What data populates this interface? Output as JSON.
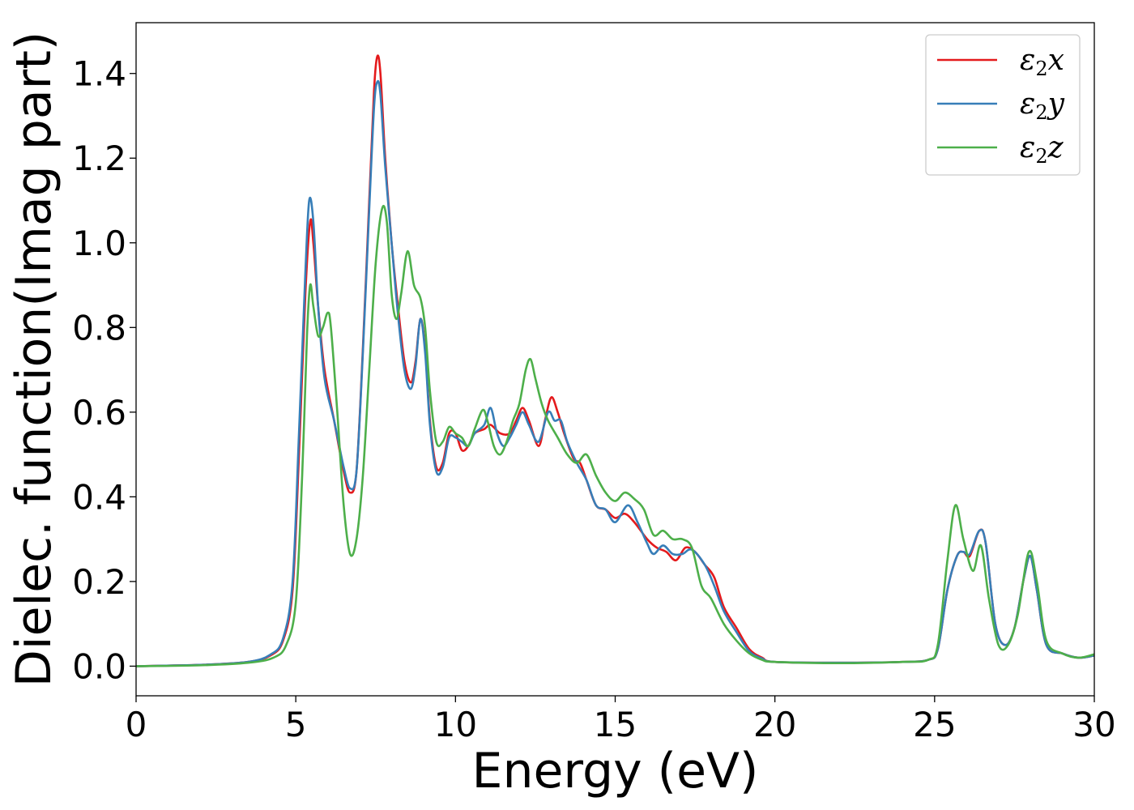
{
  "chart_data": {
    "type": "line",
    "title": "",
    "xlabel": "Energy (eV)",
    "ylabel": "Dielec. function(Imag part)",
    "xlim": [
      0,
      30
    ],
    "ylim": [
      -0.07,
      1.52
    ],
    "xticks": [
      0,
      5,
      10,
      15,
      20,
      25,
      30
    ],
    "xtick_labels": [
      "0",
      "5",
      "10",
      "15",
      "20",
      "25",
      "30"
    ],
    "yticks": [
      0.0,
      0.2,
      0.4,
      0.6,
      0.8,
      1.0,
      1.2,
      1.4
    ],
    "ytick_labels": [
      "0.0",
      "0.2",
      "0.4",
      "0.6",
      "0.8",
      "1.0",
      "1.2",
      "1.4"
    ],
    "grid": false,
    "legend_position": "top-right",
    "series": [
      {
        "name": "ε2x",
        "legend_base": "ε",
        "legend_sub": "2",
        "legend_suffix": "x",
        "color": "#e41a1c",
        "points": [
          [
            0,
            0.0
          ],
          [
            2,
            0.003
          ],
          [
            3.5,
            0.01
          ],
          [
            4.2,
            0.025
          ],
          [
            4.6,
            0.06
          ],
          [
            4.9,
            0.18
          ],
          [
            5.1,
            0.5
          ],
          [
            5.3,
            0.88
          ],
          [
            5.45,
            1.05
          ],
          [
            5.55,
            1.0
          ],
          [
            5.7,
            0.85
          ],
          [
            5.9,
            0.7
          ],
          [
            6.2,
            0.58
          ],
          [
            6.5,
            0.46
          ],
          [
            6.7,
            0.41
          ],
          [
            6.9,
            0.46
          ],
          [
            7.1,
            0.75
          ],
          [
            7.3,
            1.1
          ],
          [
            7.45,
            1.36
          ],
          [
            7.55,
            1.44
          ],
          [
            7.65,
            1.4
          ],
          [
            7.8,
            1.2
          ],
          [
            8.0,
            1.0
          ],
          [
            8.2,
            0.85
          ],
          [
            8.4,
            0.72
          ],
          [
            8.6,
            0.67
          ],
          [
            8.75,
            0.72
          ],
          [
            8.9,
            0.82
          ],
          [
            9.05,
            0.75
          ],
          [
            9.2,
            0.58
          ],
          [
            9.4,
            0.47
          ],
          [
            9.6,
            0.48
          ],
          [
            9.8,
            0.55
          ],
          [
            10.0,
            0.55
          ],
          [
            10.2,
            0.51
          ],
          [
            10.4,
            0.52
          ],
          [
            10.6,
            0.55
          ],
          [
            10.9,
            0.56
          ],
          [
            11.1,
            0.57
          ],
          [
            11.4,
            0.55
          ],
          [
            11.7,
            0.55
          ],
          [
            11.9,
            0.58
          ],
          [
            12.1,
            0.61
          ],
          [
            12.3,
            0.58
          ],
          [
            12.6,
            0.52
          ],
          [
            12.8,
            0.58
          ],
          [
            13.0,
            0.635
          ],
          [
            13.2,
            0.6
          ],
          [
            13.4,
            0.55
          ],
          [
            13.7,
            0.49
          ],
          [
            13.9,
            0.48
          ],
          [
            14.1,
            0.44
          ],
          [
            14.4,
            0.38
          ],
          [
            14.7,
            0.37
          ],
          [
            15.0,
            0.35
          ],
          [
            15.3,
            0.36
          ],
          [
            15.6,
            0.34
          ],
          [
            16.0,
            0.3
          ],
          [
            16.3,
            0.28
          ],
          [
            16.6,
            0.27
          ],
          [
            16.9,
            0.25
          ],
          [
            17.2,
            0.28
          ],
          [
            17.5,
            0.27
          ],
          [
            17.8,
            0.24
          ],
          [
            18.1,
            0.21
          ],
          [
            18.4,
            0.14
          ],
          [
            18.8,
            0.09
          ],
          [
            19.2,
            0.04
          ],
          [
            19.6,
            0.02
          ],
          [
            20.0,
            0.01
          ],
          [
            22,
            0.008
          ],
          [
            24,
            0.01
          ],
          [
            24.8,
            0.015
          ],
          [
            25.1,
            0.04
          ],
          [
            25.4,
            0.18
          ],
          [
            25.7,
            0.26
          ],
          [
            25.9,
            0.27
          ],
          [
            26.1,
            0.26
          ],
          [
            26.4,
            0.32
          ],
          [
            26.6,
            0.29
          ],
          [
            26.9,
            0.1
          ],
          [
            27.2,
            0.05
          ],
          [
            27.5,
            0.09
          ],
          [
            27.8,
            0.21
          ],
          [
            28.0,
            0.26
          ],
          [
            28.2,
            0.18
          ],
          [
            28.5,
            0.05
          ],
          [
            29,
            0.03
          ],
          [
            29.5,
            0.02
          ],
          [
            30,
            0.025
          ]
        ]
      },
      {
        "name": "ε2y",
        "legend_base": "ε",
        "legend_sub": "2",
        "legend_suffix": "y",
        "color": "#377eb8",
        "points": [
          [
            0,
            0.0
          ],
          [
            2,
            0.003
          ],
          [
            3.5,
            0.01
          ],
          [
            4.2,
            0.027
          ],
          [
            4.6,
            0.065
          ],
          [
            4.9,
            0.2
          ],
          [
            5.1,
            0.55
          ],
          [
            5.3,
            0.93
          ],
          [
            5.42,
            1.1
          ],
          [
            5.55,
            1.05
          ],
          [
            5.7,
            0.85
          ],
          [
            5.9,
            0.68
          ],
          [
            6.2,
            0.58
          ],
          [
            6.5,
            0.47
          ],
          [
            6.7,
            0.42
          ],
          [
            6.9,
            0.46
          ],
          [
            7.1,
            0.74
          ],
          [
            7.3,
            1.08
          ],
          [
            7.45,
            1.32
          ],
          [
            7.55,
            1.38
          ],
          [
            7.65,
            1.35
          ],
          [
            7.8,
            1.18
          ],
          [
            8.0,
            1.0
          ],
          [
            8.2,
            0.83
          ],
          [
            8.4,
            0.7
          ],
          [
            8.6,
            0.655
          ],
          [
            8.75,
            0.71
          ],
          [
            8.9,
            0.82
          ],
          [
            9.05,
            0.74
          ],
          [
            9.2,
            0.57
          ],
          [
            9.4,
            0.46
          ],
          [
            9.6,
            0.47
          ],
          [
            9.8,
            0.54
          ],
          [
            10.0,
            0.54
          ],
          [
            10.2,
            0.53
          ],
          [
            10.4,
            0.52
          ],
          [
            10.6,
            0.55
          ],
          [
            10.9,
            0.57
          ],
          [
            11.1,
            0.61
          ],
          [
            11.3,
            0.55
          ],
          [
            11.5,
            0.52
          ],
          [
            11.7,
            0.54
          ],
          [
            11.9,
            0.57
          ],
          [
            12.1,
            0.6
          ],
          [
            12.3,
            0.57
          ],
          [
            12.6,
            0.53
          ],
          [
            12.9,
            0.6
          ],
          [
            13.1,
            0.58
          ],
          [
            13.3,
            0.58
          ],
          [
            13.5,
            0.53
          ],
          [
            13.8,
            0.48
          ],
          [
            14.1,
            0.44
          ],
          [
            14.4,
            0.38
          ],
          [
            14.7,
            0.37
          ],
          [
            15.0,
            0.34
          ],
          [
            15.4,
            0.38
          ],
          [
            15.7,
            0.34
          ],
          [
            16.0,
            0.29
          ],
          [
            16.2,
            0.265
          ],
          [
            16.5,
            0.285
          ],
          [
            16.8,
            0.265
          ],
          [
            17.1,
            0.265
          ],
          [
            17.4,
            0.275
          ],
          [
            17.8,
            0.24
          ],
          [
            18.1,
            0.19
          ],
          [
            18.4,
            0.13
          ],
          [
            18.8,
            0.08
          ],
          [
            19.2,
            0.035
          ],
          [
            19.6,
            0.018
          ],
          [
            20.0,
            0.01
          ],
          [
            22,
            0.008
          ],
          [
            24,
            0.01
          ],
          [
            24.8,
            0.015
          ],
          [
            25.1,
            0.04
          ],
          [
            25.4,
            0.18
          ],
          [
            25.7,
            0.26
          ],
          [
            25.9,
            0.27
          ],
          [
            26.1,
            0.265
          ],
          [
            26.4,
            0.32
          ],
          [
            26.6,
            0.29
          ],
          [
            26.9,
            0.1
          ],
          [
            27.2,
            0.05
          ],
          [
            27.5,
            0.09
          ],
          [
            27.8,
            0.21
          ],
          [
            28.0,
            0.26
          ],
          [
            28.2,
            0.18
          ],
          [
            28.5,
            0.05
          ],
          [
            29,
            0.03
          ],
          [
            29.5,
            0.02
          ],
          [
            30,
            0.025
          ]
        ]
      },
      {
        "name": "ε2z",
        "legend_base": "ε",
        "legend_sub": "2",
        "legend_suffix": "z",
        "color": "#4daf4a",
        "points": [
          [
            0,
            0.0
          ],
          [
            2,
            0.002
          ],
          [
            3.5,
            0.008
          ],
          [
            4.3,
            0.02
          ],
          [
            4.7,
            0.05
          ],
          [
            5.0,
            0.15
          ],
          [
            5.2,
            0.45
          ],
          [
            5.35,
            0.78
          ],
          [
            5.45,
            0.9
          ],
          [
            5.55,
            0.85
          ],
          [
            5.7,
            0.78
          ],
          [
            5.85,
            0.8
          ],
          [
            6.0,
            0.835
          ],
          [
            6.1,
            0.8
          ],
          [
            6.3,
            0.6
          ],
          [
            6.5,
            0.38
          ],
          [
            6.7,
            0.265
          ],
          [
            6.9,
            0.3
          ],
          [
            7.1,
            0.45
          ],
          [
            7.3,
            0.7
          ],
          [
            7.5,
            0.95
          ],
          [
            7.7,
            1.08
          ],
          [
            7.85,
            1.05
          ],
          [
            8.0,
            0.88
          ],
          [
            8.15,
            0.82
          ],
          [
            8.3,
            0.88
          ],
          [
            8.5,
            0.98
          ],
          [
            8.7,
            0.9
          ],
          [
            8.9,
            0.87
          ],
          [
            9.05,
            0.8
          ],
          [
            9.2,
            0.65
          ],
          [
            9.4,
            0.53
          ],
          [
            9.6,
            0.53
          ],
          [
            9.8,
            0.565
          ],
          [
            10.0,
            0.55
          ],
          [
            10.2,
            0.54
          ],
          [
            10.4,
            0.52
          ],
          [
            10.6,
            0.56
          ],
          [
            10.85,
            0.605
          ],
          [
            11.0,
            0.58
          ],
          [
            11.2,
            0.52
          ],
          [
            11.4,
            0.5
          ],
          [
            11.6,
            0.53
          ],
          [
            11.8,
            0.58
          ],
          [
            12.0,
            0.62
          ],
          [
            12.2,
            0.7
          ],
          [
            12.35,
            0.725
          ],
          [
            12.5,
            0.68
          ],
          [
            12.7,
            0.62
          ],
          [
            12.9,
            0.58
          ],
          [
            13.2,
            0.54
          ],
          [
            13.5,
            0.5
          ],
          [
            13.8,
            0.48
          ],
          [
            14.1,
            0.5
          ],
          [
            14.4,
            0.45
          ],
          [
            14.7,
            0.41
          ],
          [
            15.0,
            0.39
          ],
          [
            15.3,
            0.41
          ],
          [
            15.6,
            0.395
          ],
          [
            15.9,
            0.37
          ],
          [
            16.2,
            0.31
          ],
          [
            16.5,
            0.32
          ],
          [
            16.8,
            0.3
          ],
          [
            17.1,
            0.3
          ],
          [
            17.4,
            0.28
          ],
          [
            17.7,
            0.19
          ],
          [
            18.0,
            0.16
          ],
          [
            18.4,
            0.1
          ],
          [
            18.8,
            0.06
          ],
          [
            19.2,
            0.03
          ],
          [
            19.6,
            0.015
          ],
          [
            20.0,
            0.01
          ],
          [
            22,
            0.007
          ],
          [
            24,
            0.01
          ],
          [
            24.8,
            0.015
          ],
          [
            25.1,
            0.05
          ],
          [
            25.4,
            0.25
          ],
          [
            25.65,
            0.38
          ],
          [
            25.9,
            0.3
          ],
          [
            26.2,
            0.225
          ],
          [
            26.45,
            0.285
          ],
          [
            26.7,
            0.16
          ],
          [
            27.0,
            0.05
          ],
          [
            27.3,
            0.05
          ],
          [
            27.6,
            0.12
          ],
          [
            27.95,
            0.27
          ],
          [
            28.2,
            0.2
          ],
          [
            28.5,
            0.06
          ],
          [
            29,
            0.03
          ],
          [
            29.5,
            0.02
          ],
          [
            30,
            0.028
          ]
        ]
      }
    ]
  }
}
